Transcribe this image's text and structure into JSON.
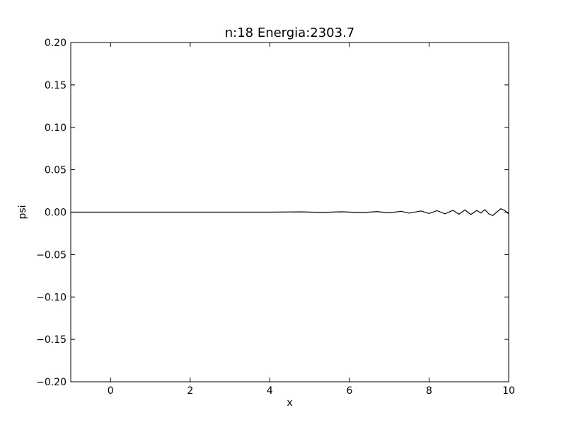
{
  "chart_data": {
    "type": "line",
    "title": "n:18 Energia:2303.7",
    "xlabel": "x",
    "ylabel": "psi",
    "xlim": [
      -1,
      10
    ],
    "ylim": [
      -0.2,
      0.2
    ],
    "xticks": [
      0,
      2,
      4,
      6,
      8,
      10
    ],
    "xtick_labels": [
      "0",
      "2",
      "4",
      "6",
      "8",
      "10"
    ],
    "yticks": [
      0.2,
      0.15,
      0.1,
      0.05,
      0.0,
      -0.05,
      -0.1,
      -0.15,
      -0.2
    ],
    "ytick_labels": [
      "0.20",
      "0.15",
      "0.10",
      "0.05",
      "0.00",
      "−0.05",
      "−0.10",
      "−0.15",
      "−0.20"
    ],
    "grid": false,
    "series": [
      {
        "color": "#000000",
        "x": [
          -1.0,
          4.0,
          4.8,
          5.3,
          5.8,
          6.3,
          6.7,
          7.0,
          7.3,
          7.5,
          7.8,
          8.0,
          8.2,
          8.4,
          8.6,
          8.75,
          8.9,
          9.05,
          9.2,
          9.3,
          9.4,
          9.5,
          9.6,
          9.7,
          9.8,
          9.9,
          10.0
        ],
        "y": [
          0.0,
          0.0,
          0.0003,
          -0.0003,
          0.0004,
          -0.0005,
          0.0006,
          -0.0008,
          0.001,
          -0.0012,
          0.0014,
          -0.0016,
          0.0018,
          -0.002,
          0.0022,
          -0.0024,
          0.0026,
          -0.0028,
          0.002,
          -0.001,
          0.003,
          -0.002,
          -0.004,
          0.0,
          0.004,
          0.002,
          -0.002
        ]
      }
    ]
  }
}
